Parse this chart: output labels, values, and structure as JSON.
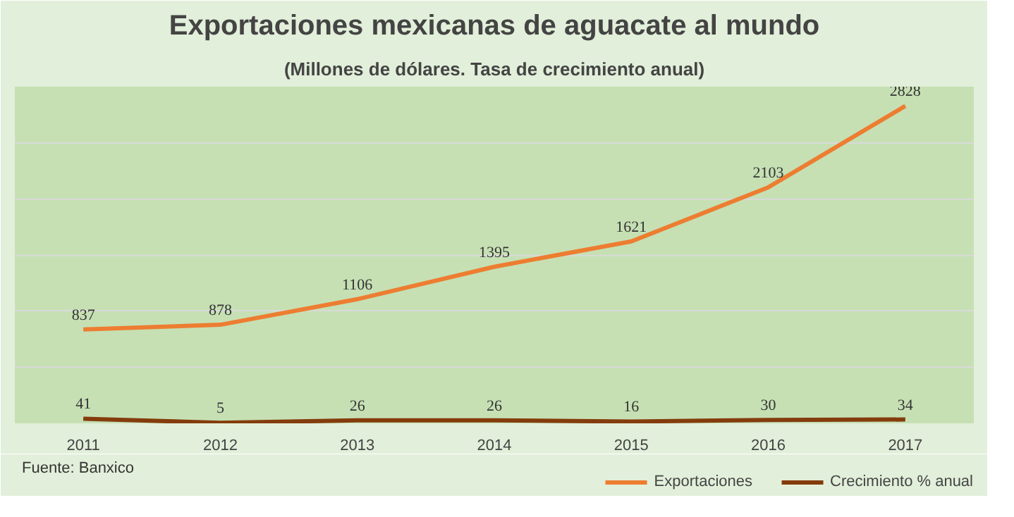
{
  "chart_data": {
    "type": "line",
    "title": "Exportaciones mexicanas de aguacate al mundo",
    "subtitle": "(Millones de dólares. Tasa de crecimiento anual)",
    "categories": [
      "2011",
      "2012",
      "2013",
      "2014",
      "2015",
      "2016",
      "2017"
    ],
    "series": [
      {
        "name": "Exportaciones",
        "color": "#ed7d31",
        "values": [
          837,
          878,
          1106,
          1395,
          1621,
          2103,
          2828
        ]
      },
      {
        "name": "Crecimiento % anual",
        "color": "#843c0c",
        "values": [
          41,
          5,
          26,
          26,
          16,
          30,
          34
        ]
      }
    ],
    "ylim": [
      0,
      3000
    ],
    "yticks": [
      {
        "value": 0,
        "label": null
      },
      {
        "value": 500,
        "label": null
      },
      {
        "value": 1000,
        "label": null
      },
      {
        "value": 1500,
        "label": null
      },
      {
        "value": 2000,
        "label": null
      },
      {
        "value": 2500,
        "label": null
      },
      {
        "value": 3000,
        "label": null
      }
    ],
    "tick_labels": "x",
    "grid": "y",
    "data_labels": true,
    "legend": "bottom right",
    "marker": "none",
    "line_style": "solid",
    "annotations": [
      "Fuente: Banxico"
    ]
  }
}
